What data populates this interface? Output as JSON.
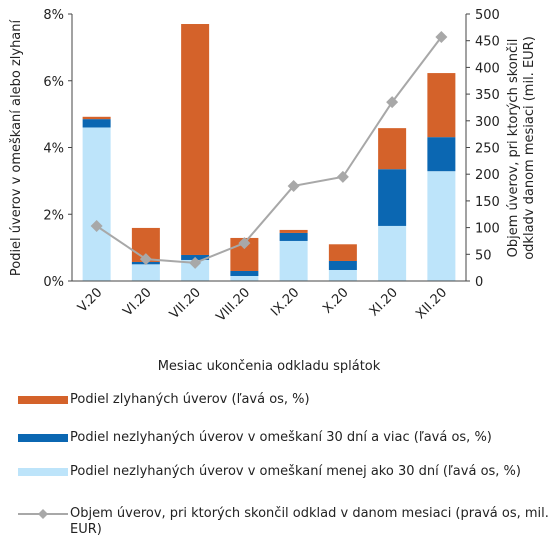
{
  "chart_data": {
    "type": "bar",
    "stacked": true,
    "categories": [
      "V.20",
      "VI.20",
      "VII.20",
      "VIII.20",
      "IX.20",
      "X.20",
      "XI.20",
      "XII.20"
    ],
    "xlabel": "Mesiac ukončenia odkladu splátok",
    "ylabel": "Podiel úverov v omeškaní alebo zlyhaní",
    "y2label": [
      "Objem úverov, pri ktorých skončil",
      "odkladv danom mesiaci (mil. EUR)"
    ],
    "ylim": [
      0,
      8
    ],
    "yticks": [
      {
        "value": 0,
        "label": "0%"
      },
      {
        "value": 2,
        "label": "2%"
      },
      {
        "value": 4,
        "label": "4%"
      },
      {
        "value": 6,
        "label": "6%"
      },
      {
        "value": 8,
        "label": "8%"
      }
    ],
    "y2lim": [
      0,
      500
    ],
    "y2ticks": [
      0,
      50,
      100,
      150,
      200,
      250,
      300,
      350,
      400,
      450,
      500
    ],
    "series": [
      {
        "name": "Podiel nezlyhaných úverov v omeškaní menej ako 30 dní (ľavá os, %)",
        "color": "#bde4fa",
        "values": [
          4.6,
          0.5,
          0.63,
          0.15,
          1.2,
          0.33,
          1.65,
          3.29
        ]
      },
      {
        "name": "Podiel nezlyhaných úverov v omeškaní 30 dní a viac (ľavá os, %)",
        "color": "#0b67b2",
        "values": [
          0.25,
          0.07,
          0.15,
          0.15,
          0.24,
          0.27,
          1.7,
          1.02
        ]
      },
      {
        "name": "Podiel zlyhaných úverov (ľavá os, %)",
        "color": "#d4622a",
        "values": [
          0.07,
          1.02,
          6.92,
          0.99,
          0.09,
          0.5,
          1.23,
          1.92
        ]
      },
      {
        "name": "Objem úverov, pri ktorých skončil odklad v danom mesiaci (pravá os, mil. EUR)",
        "color": "#a8a8a8",
        "type": "line",
        "axis": "y2",
        "values": [
          103,
          41,
          34,
          71,
          178,
          195,
          335,
          457
        ]
      }
    ]
  }
}
